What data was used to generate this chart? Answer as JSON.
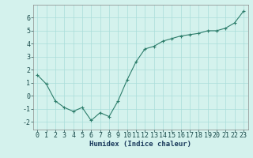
{
  "x": [
    0,
    1,
    2,
    3,
    4,
    5,
    6,
    7,
    8,
    9,
    10,
    11,
    12,
    13,
    14,
    15,
    16,
    17,
    18,
    19,
    20,
    21,
    22,
    23
  ],
  "y": [
    1.6,
    0.9,
    -0.4,
    -0.9,
    -1.2,
    -0.9,
    -1.9,
    -1.3,
    -1.6,
    -0.4,
    1.2,
    2.6,
    3.6,
    3.8,
    4.2,
    4.4,
    4.6,
    4.7,
    4.8,
    5.0,
    5.0,
    5.2,
    5.6,
    6.5
  ],
  "line_color": "#2d7d6b",
  "marker": "P",
  "marker_size": 2.5,
  "bg_color": "#d4f2ed",
  "grid_color": "#aaddda",
  "xlabel": "Humidex (Indice chaleur)",
  "ylim": [
    -2.6,
    7.0
  ],
  "xlim": [
    -0.5,
    23.5
  ],
  "yticks": [
    -2,
    -1,
    0,
    1,
    2,
    3,
    4,
    5,
    6
  ],
  "xticks": [
    0,
    1,
    2,
    3,
    4,
    5,
    6,
    7,
    8,
    9,
    10,
    11,
    12,
    13,
    14,
    15,
    16,
    17,
    18,
    19,
    20,
    21,
    22,
    23
  ],
  "xlabel_fontsize": 6.5,
  "tick_fontsize": 6.0
}
